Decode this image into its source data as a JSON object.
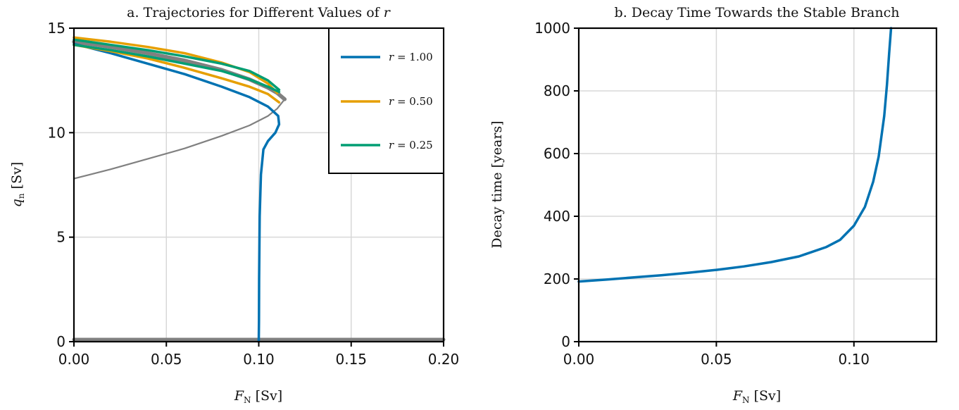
{
  "colors": {
    "r100": "#0072B2",
    "r050": "#E69F00",
    "r025": "#009E73",
    "branch": "#808080"
  },
  "chart_data": [
    {
      "type": "line",
      "title": "a. Trajectories for Different Values of r",
      "title_parts": [
        "a. Trajectories for Different Values of ",
        "r"
      ],
      "xlabel": "F_N [Sv]",
      "xlabel_parts": [
        "F",
        "N",
        " [Sv]"
      ],
      "ylabel": "q_n [Sv]",
      "ylabel_parts": [
        "q",
        "n",
        " [Sv]"
      ],
      "xlim": [
        0.0,
        0.2
      ],
      "ylim": [
        0,
        15
      ],
      "xticks": [
        0.0,
        0.05,
        0.1,
        0.15,
        0.2
      ],
      "xtick_labels": [
        "0.00",
        "0.05",
        "0.10",
        "0.15",
        "0.20"
      ],
      "yticks": [
        0,
        5,
        10,
        15
      ],
      "ytick_labels": [
        "0",
        "5",
        "10",
        "15"
      ],
      "grid": true,
      "legend_position": "top-right",
      "legend": [
        {
          "label": "r = 1.00",
          "label_parts": [
            "r",
            " = 1.00"
          ],
          "color_key": "r100"
        },
        {
          "label": "r = 0.50",
          "label_parts": [
            "r",
            " = 0.50"
          ],
          "color_key": "r050"
        },
        {
          "label": "r = 0.25",
          "label_parts": [
            "r",
            " = 0.25"
          ],
          "color_key": "r025"
        }
      ],
      "background_branches": [
        {
          "role": "stable upper branch",
          "x": [
            0.0,
            0.02,
            0.04,
            0.06,
            0.08,
            0.095,
            0.105,
            0.11,
            0.114
          ],
          "y": [
            14.35,
            14.1,
            13.8,
            13.45,
            13.0,
            12.55,
            12.15,
            11.9,
            11.6
          ]
        },
        {
          "role": "unstable middle branch",
          "x": [
            0.0,
            0.02,
            0.04,
            0.06,
            0.08,
            0.095,
            0.105,
            0.11,
            0.114
          ],
          "y": [
            7.8,
            8.25,
            8.75,
            9.25,
            9.85,
            10.35,
            10.8,
            11.15,
            11.6
          ]
        },
        {
          "role": "off state",
          "x": [
            0.0,
            0.2
          ],
          "y": [
            0.1,
            0.1
          ]
        }
      ],
      "series": [
        {
          "name": "r = 1.00",
          "color_key": "r100",
          "x": [
            0.0,
            0.02,
            0.04,
            0.06,
            0.08,
            0.095,
            0.105,
            0.1105,
            0.111,
            0.109,
            0.105,
            0.1025,
            0.1012,
            0.1005,
            0.1002,
            0.1001,
            0.1
          ],
          "y": [
            14.25,
            13.8,
            13.3,
            12.8,
            12.2,
            11.7,
            11.25,
            10.8,
            10.4,
            10.0,
            9.6,
            9.2,
            8.0,
            6.0,
            3.0,
            1.0,
            0.0
          ]
        },
        {
          "name": "r = 0.50",
          "color_key": "r050",
          "x": [
            0.0,
            0.02,
            0.04,
            0.06,
            0.08,
            0.095,
            0.105,
            0.11
          ],
          "y": [
            14.55,
            14.35,
            14.1,
            13.8,
            13.35,
            12.9,
            12.35,
            11.9
          ]
        },
        {
          "name": "r = 0.50 (lower pass)",
          "color_key": "r050",
          "x": [
            0.0,
            0.02,
            0.04,
            0.06,
            0.08,
            0.095,
            0.105,
            0.111
          ],
          "y": [
            14.2,
            13.9,
            13.55,
            13.1,
            12.6,
            12.2,
            11.85,
            11.45
          ]
        },
        {
          "name": "r = 0.25",
          "color_key": "r025",
          "x": [
            0.0,
            0.02,
            0.04,
            0.06,
            0.08,
            0.095,
            0.105,
            0.111
          ],
          "y": [
            14.45,
            14.2,
            13.95,
            13.65,
            13.3,
            12.95,
            12.5,
            12.05
          ]
        },
        {
          "name": "r = 0.25 (lower pass)",
          "color_key": "r025",
          "x": [
            0.0,
            0.02,
            0.04,
            0.06,
            0.08,
            0.095,
            0.105,
            0.111
          ],
          "y": [
            14.2,
            13.95,
            13.65,
            13.3,
            12.95,
            12.55,
            12.2,
            11.95
          ]
        }
      ]
    },
    {
      "type": "line",
      "title": "b. Decay Time Towards the Stable Branch",
      "xlabel": "F_N [Sv]",
      "xlabel_parts": [
        "F",
        "N",
        " [Sv]"
      ],
      "ylabel": "Decay time [years]",
      "xlim": [
        0.0,
        0.13
      ],
      "ylim": [
        0,
        1000
      ],
      "xticks": [
        0.0,
        0.05,
        0.1
      ],
      "xtick_labels": [
        "0.00",
        "0.05",
        "0.10"
      ],
      "yticks": [
        0,
        200,
        400,
        600,
        800,
        1000
      ],
      "ytick_labels": [
        "0",
        "200",
        "400",
        "600",
        "800",
        "1000"
      ],
      "grid": true,
      "series": [
        {
          "name": "decay time",
          "color_key": "r100",
          "x": [
            0.0,
            0.01,
            0.02,
            0.03,
            0.04,
            0.05,
            0.06,
            0.07,
            0.08,
            0.09,
            0.095,
            0.1,
            0.104,
            0.107,
            0.109,
            0.111,
            0.112,
            0.1128,
            0.1135
          ],
          "y": [
            192,
            198,
            205,
            212,
            220,
            229,
            240,
            254,
            272,
            302,
            325,
            370,
            430,
            510,
            590,
            720,
            820,
            920,
            1000
          ]
        }
      ]
    }
  ]
}
